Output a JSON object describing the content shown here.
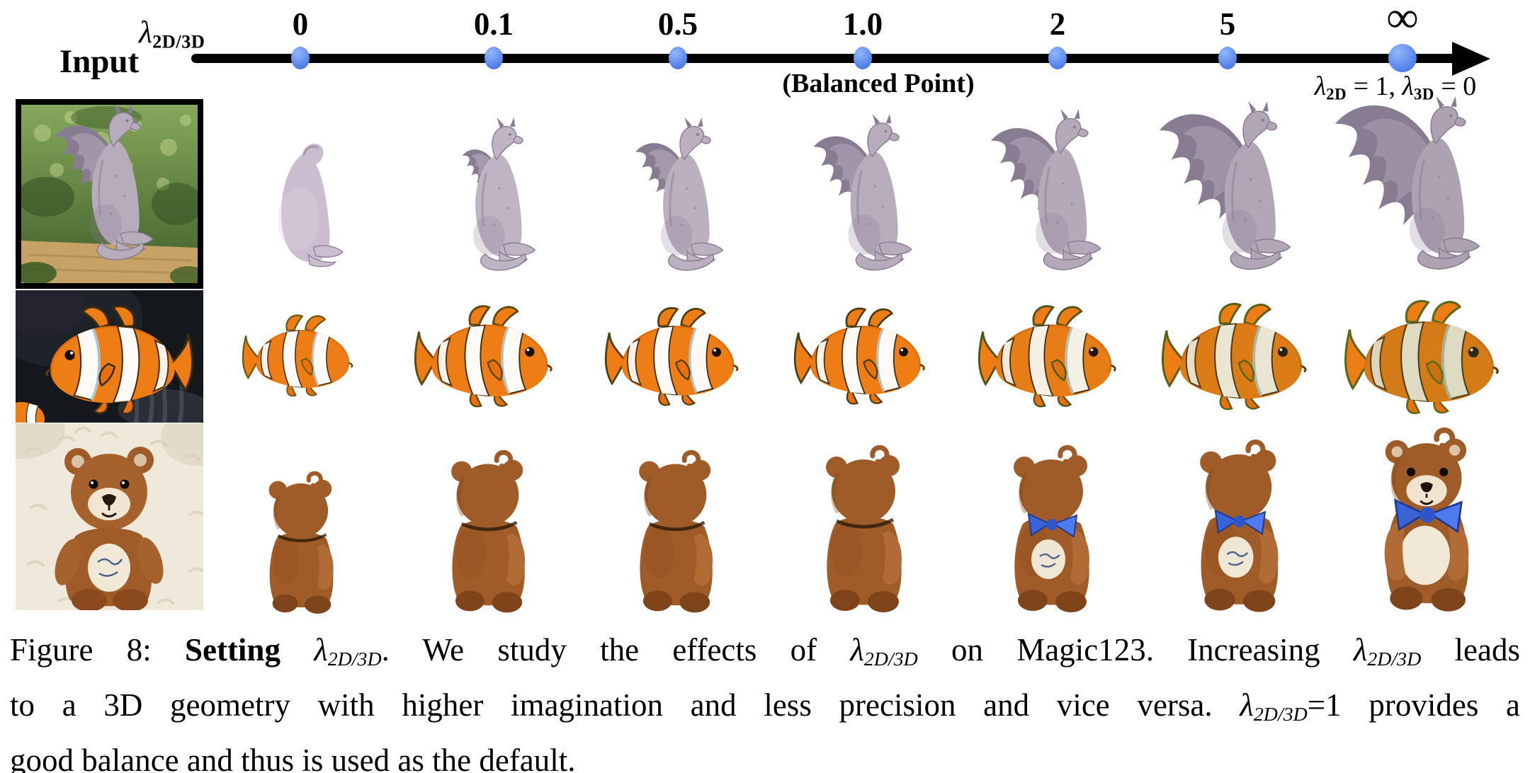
{
  "figure": {
    "name": "Figure 8",
    "paper_method": "Magic123"
  },
  "axis": {
    "parameter_label": {
      "symbol": "λ",
      "subscript": "2D/3D"
    },
    "ticks": [
      "0",
      "0.1",
      "0.5",
      "1.0",
      "2",
      "5",
      "∞"
    ],
    "balanced_point_label": "(Balanced Point)",
    "infinity_annotation": {
      "parts": [
        {
          "t": "λ",
          "s": "i"
        },
        {
          "t": "2D",
          "s": "bsub"
        },
        {
          "t": " = 1, ",
          "s": "r"
        },
        {
          "t": "λ",
          "s": "i"
        },
        {
          "t": "3D",
          "s": "bsub"
        },
        {
          "t": " = 0",
          "s": "r"
        }
      ]
    },
    "dot_color": "#4b79e8"
  },
  "input_column": {
    "header": "Input",
    "photos": [
      "dragon-statue-in-garden",
      "clownfish-in-anemone",
      "teddy-bear-on-fur"
    ]
  },
  "grid": {
    "columns": [
      "0",
      "0.1",
      "0.5",
      "1.0",
      "2",
      "5",
      "inf"
    ],
    "rows": [
      "dragon-statue",
      "clownfish",
      "teddy-bear"
    ]
  },
  "colors": {
    "dragon_gray": "#b5abba",
    "fish_orange": "#ef7d15",
    "teddy_brown": "#a05c28",
    "bow_blue": "#3a63d8"
  },
  "caption": {
    "lines": [
      [
        {
          "t": "Figure 8: ",
          "s": "r"
        },
        {
          "t": "Setting",
          "s": "b"
        },
        {
          "t": " ",
          "s": "r"
        },
        {
          "t": "λ",
          "s": "i"
        },
        {
          "t": "2D/3D",
          "s": "sub"
        },
        {
          "t": ". We study the effects of ",
          "s": "r"
        },
        {
          "t": "λ",
          "s": "i"
        },
        {
          "t": "2D/3D",
          "s": "sub"
        },
        {
          "t": " on Magic123. Increasing ",
          "s": "r"
        },
        {
          "t": "λ",
          "s": "i"
        },
        {
          "t": "2D/3D",
          "s": "sub"
        },
        {
          "t": " leads",
          "s": "r"
        }
      ],
      [
        {
          "t": "to a 3D geometry with higher imagination and less precision and vice versa. ",
          "s": "r"
        },
        {
          "t": "λ",
          "s": "i"
        },
        {
          "t": "2D/3D",
          "s": "sub"
        },
        {
          "t": "=1 provides a",
          "s": "r"
        }
      ],
      [
        {
          "t": "good balance and thus is used as the default.",
          "s": "r"
        }
      ]
    ]
  }
}
